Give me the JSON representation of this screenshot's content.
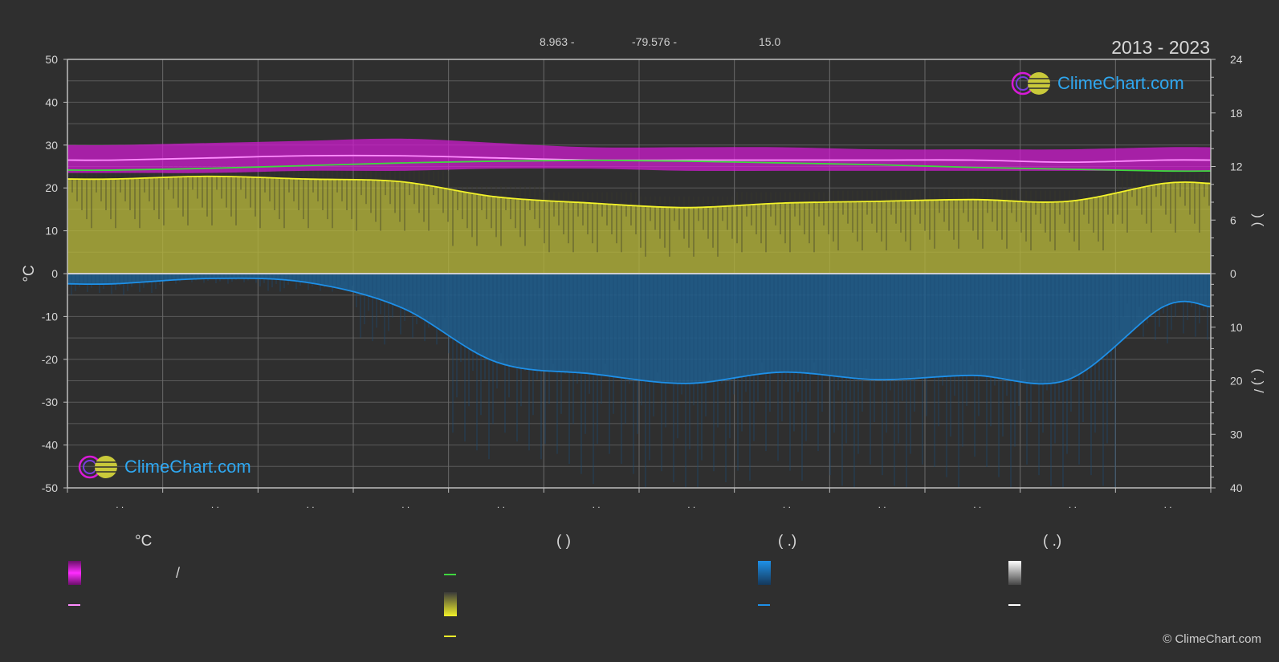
{
  "header": {
    "lat": "8.963 -",
    "lon": "-79.576 -",
    "elev": "15.0",
    "years": "2013 - 2023"
  },
  "brand": {
    "logo_text": "ClimeChart.com",
    "copyright": "© ClimeChart.com"
  },
  "legend": {
    "col1_head": "°C",
    "col2_head": "(          )",
    "col3_head": "(   .)",
    "col4_head": "(   .)",
    "slash": "/"
  },
  "colors": {
    "background": "#2f2f2f",
    "temp_band": "#d81ad8",
    "temp_line": "#ff8cff",
    "daylight_line": "#3fd83f",
    "sunshine_band": "#b6b63a",
    "sunshine_line": "#f2f22a",
    "precip_band": "#1e5e8e",
    "precip_line": "#1e90e8",
    "snow_line": "#ffffff",
    "accent_text": "#2fa7f0"
  },
  "chart_data": {
    "type": "area",
    "x": [
      "Jan",
      "Feb",
      "Mar",
      "Apr",
      "May",
      "Jun",
      "Jul",
      "Aug",
      "Sep",
      "Oct",
      "Nov",
      "Dec"
    ],
    "month_tick_labels": [
      ". .",
      ". .",
      ". .",
      ". .",
      ". .",
      ". .",
      ". .",
      ". .",
      ". .",
      ". .",
      ". .",
      ". ."
    ],
    "left_axis": {
      "label": "°C",
      "ylim": [
        -50,
        50
      ],
      "ticks": [
        50,
        40,
        30,
        20,
        10,
        0,
        -10,
        -20,
        -30,
        -40,
        -50
      ]
    },
    "right_axis_top": {
      "label": ")          (",
      "ylim": [
        0,
        24
      ],
      "ticks": [
        24,
        18,
        12,
        6,
        0
      ]
    },
    "right_axis_bottom": {
      "label": "(  .)   /",
      "ylim": [
        40,
        0
      ],
      "ticks": [
        0,
        10,
        20,
        30,
        40
      ]
    },
    "grid": true,
    "series": [
      {
        "key": "temp_max",
        "axis": "left",
        "values": [
          30.0,
          30.5,
          31.0,
          31.5,
          30.5,
          29.5,
          29.5,
          29.5,
          29.0,
          29.0,
          29.0,
          29.5
        ]
      },
      {
        "key": "temp_min",
        "axis": "left",
        "values": [
          23.5,
          23.5,
          24.0,
          24.0,
          24.5,
          24.5,
          24.0,
          24.0,
          24.0,
          24.0,
          24.0,
          24.0
        ]
      },
      {
        "key": "temp_mean",
        "axis": "left",
        "values": [
          26.5,
          27.0,
          27.5,
          27.5,
          27.0,
          26.5,
          26.5,
          26.5,
          26.5,
          26.5,
          26.0,
          26.5
        ]
      },
      {
        "key": "daylight",
        "axis": "right_top",
        "values": [
          11.6,
          11.8,
          12.1,
          12.4,
          12.6,
          12.7,
          12.6,
          12.4,
          12.2,
          11.9,
          11.7,
          11.5
        ]
      },
      {
        "key": "sunshine",
        "axis": "right_top",
        "values": [
          10.6,
          10.9,
          10.6,
          10.3,
          8.6,
          7.9,
          7.4,
          7.9,
          8.1,
          8.3,
          8.1,
          10.1
        ]
      },
      {
        "key": "precipitation",
        "axis": "right_bottom",
        "values": [
          1.9,
          0.9,
          1.6,
          6.3,
          16.5,
          18.7,
          20.5,
          18.4,
          19.8,
          19.0,
          19.8,
          6.2
        ]
      }
    ]
  }
}
